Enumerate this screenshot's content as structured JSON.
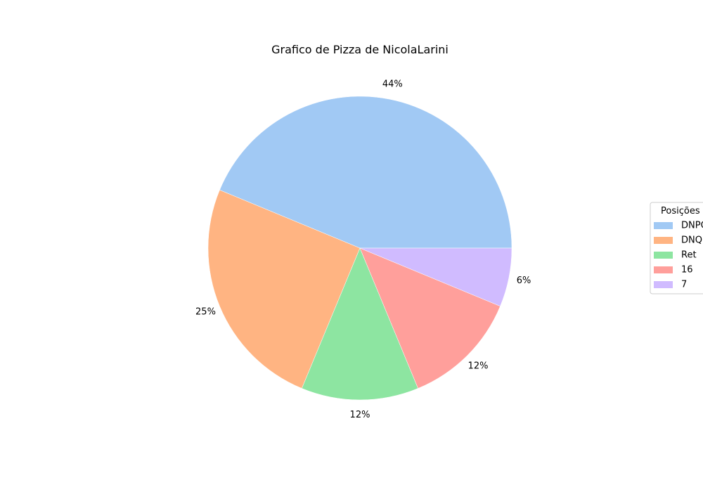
{
  "chart_data": {
    "type": "pie",
    "title": "Grafico de Pizza de NicolaLarini",
    "categories": [
      "DNPQ",
      "DNQ",
      "Ret",
      "16",
      "7"
    ],
    "values": [
      7,
      4,
      2,
      2,
      1
    ],
    "percent_labels": [
      "44%",
      "25%",
      "12%",
      "12%",
      "6%"
    ],
    "colors": [
      "#a1c9f4",
      "#ffb482",
      "#8de5a1",
      "#ff9f9b",
      "#d0bbff"
    ],
    "legend": {
      "title": "Posições",
      "placement": "center-right",
      "entries": [
        "DNPQ",
        "DNQ",
        "Ret",
        "16",
        "7"
      ]
    },
    "start_angle": 0,
    "direction": "counterclockwise"
  }
}
